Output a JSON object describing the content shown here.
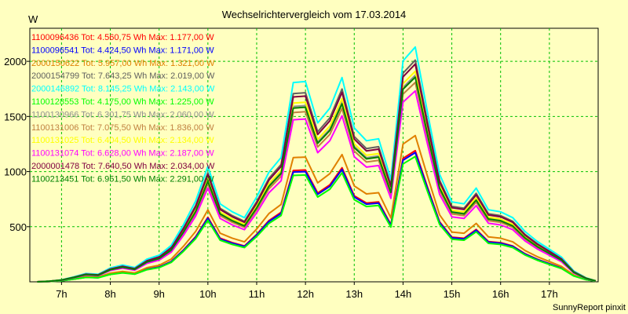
{
  "chart_data": {
    "type": "line",
    "title": "Wechselrichtervergleich vom 17.03.2014",
    "ylabel": "W",
    "footer": "SunnyReport pinxit",
    "xlim": [
      6.35,
      18.0
    ],
    "ylim": [
      0,
      2300
    ],
    "yticks": [
      500,
      1000,
      1500,
      2000
    ],
    "xticks": [
      {
        "v": 7,
        "label": "7h"
      },
      {
        "v": 8,
        "label": "8h"
      },
      {
        "v": 9,
        "label": "9h"
      },
      {
        "v": 10,
        "label": "10h"
      },
      {
        "v": 11,
        "label": "11h"
      },
      {
        "v": 12,
        "label": "12h"
      },
      {
        "v": 13,
        "label": "13h"
      },
      {
        "v": 14,
        "label": "14h"
      },
      {
        "v": 15,
        "label": "15h"
      },
      {
        "v": 16,
        "label": "16h"
      },
      {
        "v": 17,
        "label": "17h"
      }
    ],
    "grid": true,
    "legend_position": "top-left",
    "x": [
      6.5,
      6.75,
      7,
      7.25,
      7.5,
      7.75,
      8,
      8.25,
      8.5,
      8.75,
      9,
      9.25,
      9.5,
      9.75,
      10,
      10.25,
      10.5,
      10.75,
      11,
      11.25,
      11.5,
      11.75,
      12,
      12.25,
      12.5,
      12.75,
      13,
      13.25,
      13.5,
      13.75,
      14,
      14.25,
      14.5,
      14.75,
      15,
      15.25,
      15.5,
      15.75,
      16,
      16.25,
      16.5,
      16.75,
      17,
      17.25,
      17.5,
      17.75,
      17.95
    ],
    "base_profile": [
      0,
      3,
      10,
      25,
      42,
      38,
      70,
      85,
      72,
      115,
      135,
      185,
      290,
      410,
      585,
      395,
      355,
      325,
      430,
      555,
      630,
      1010,
      1015,
      805,
      880,
      1035,
      780,
      715,
      725,
      520,
      1120,
      1190,
      860,
      545,
      405,
      395,
      475,
      365,
      355,
      325,
      255,
      205,
      165,
      125,
      55,
      20,
      5
    ],
    "series": [
      {
        "name": "1100096436",
        "legend": "1100096436 Tot: 4.560,75 Wh Max: 1.177,00 W",
        "color": "#ff0000",
        "scale": 1.0
      },
      {
        "name": "1100096541",
        "legend": "1100096541 Tot: 4.424,50 Wh Max: 1.171,00 W",
        "color": "#0000ff",
        "scale": 0.985
      },
      {
        "name": "2000150622",
        "legend": "2000150622 Tot: 5.957,00 Wh Max: 1.321,00 W",
        "color": "#e08000",
        "scale": 1.115
      },
      {
        "name": "2000154799",
        "legend": "2000154799 Tot: 7.643,25 Wh Max: 2.019,00 W",
        "color": "#606060",
        "scale": 1.69
      },
      {
        "name": "2000146892",
        "legend": "2000146892 Tot: 8.145,25 Wh Max: 2.143,00 W",
        "color": "#00ffff",
        "scale": 1.79
      },
      {
        "name": "1100128553",
        "legend": "1100128553 Tot: 4.175,00 Wh Max: 1.225,00 W",
        "color": "#00ff00",
        "scale": 0.955
      },
      {
        "name": "1100130966",
        "legend": "1100130966 Tot: 6.301,75 Wh Max: 2.060,00 W",
        "color": "#909090",
        "scale": 1.575
      },
      {
        "name": "1100131006",
        "legend": "1100131006 Tot: 7.075,50 Wh Max: 1.836,00 W",
        "color": "#c08040",
        "scale": 1.52
      },
      {
        "name": "1100131025",
        "legend": "1100131025 Tot: 6.404,50 Wh Max: 2.134,00 W",
        "color": "#ffff00",
        "scale": 1.605
      },
      {
        "name": "1100131074",
        "legend": "1100131074 Tot: 6.628,00 Wh Max: 2.187,00 W",
        "color": "#ff00ff",
        "scale": 1.455
      },
      {
        "name": "2000001478",
        "legend": "2000001478 Tot: 7.640,50 Wh Max: 2.034,00 W",
        "color": "#800040",
        "scale": 1.66
      },
      {
        "name": "1100213451",
        "legend": "1100213451 Tot: 6.951,50 Wh Max: 2.291,00 W",
        "color": "#008000",
        "scale": 1.56
      }
    ]
  }
}
